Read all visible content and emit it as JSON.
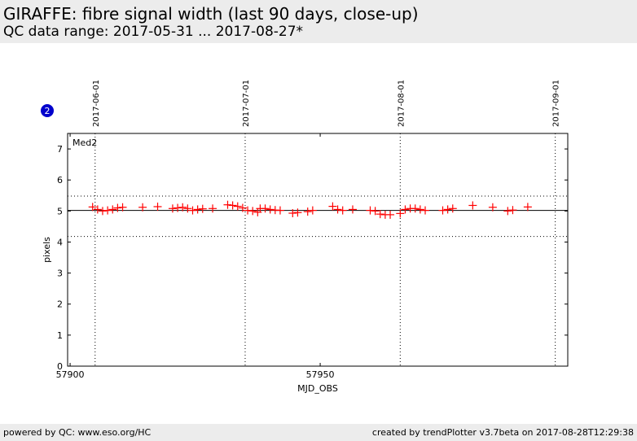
{
  "header": {
    "title": "GIRAFFE: fibre signal width (last 90 days, close-up)",
    "subtitle": "QC data range: 2017-05-31 ... 2017-08-27*"
  },
  "footer": {
    "left": "powered by QC: www.eso.org/HC",
    "right": "created by trendPlotter v3.7beta on 2017-08-28T12:29:38"
  },
  "badge": "2",
  "colors": {
    "marker": "#ff0000",
    "badge": "#0000cc",
    "header_bg": "#ececec"
  },
  "chart_data": {
    "type": "scatter",
    "title": "",
    "xlabel": "MJD_OBS",
    "ylabel": "pixels",
    "xlim": [
      57899.5,
      57999.5
    ],
    "ylim": [
      0,
      7.5
    ],
    "xticks": [
      57900,
      57950
    ],
    "yticks": [
      0,
      1,
      2,
      3,
      4,
      5,
      6,
      7
    ],
    "panel_label": "Med2",
    "date_markers": [
      {
        "label": "2017-06-01",
        "mjd": 57905
      },
      {
        "label": "2017-07-01",
        "mjd": 57935
      },
      {
        "label": "2017-08-01",
        "mjd": 57966
      },
      {
        "label": "2017-09-01",
        "mjd": 57997
      }
    ],
    "reference_lines": [
      {
        "y": 5.02,
        "style": "solid"
      },
      {
        "y": 5.48,
        "style": "dotted"
      },
      {
        "y": 4.18,
        "style": "dotted"
      }
    ],
    "grid": false,
    "marker": "+",
    "points": [
      {
        "x": 57904.5,
        "y": 5.13
      },
      {
        "x": 57905.5,
        "y": 5.05
      },
      {
        "x": 57906.5,
        "y": 5.0
      },
      {
        "x": 57907.5,
        "y": 5.02
      },
      {
        "x": 57908.5,
        "y": 5.05
      },
      {
        "x": 57909.5,
        "y": 5.1
      },
      {
        "x": 57910.5,
        "y": 5.12
      },
      {
        "x": 57914.5,
        "y": 5.12
      },
      {
        "x": 57917.5,
        "y": 5.14
      },
      {
        "x": 57920.5,
        "y": 5.08
      },
      {
        "x": 57921.5,
        "y": 5.1
      },
      {
        "x": 57922.5,
        "y": 5.12
      },
      {
        "x": 57923.5,
        "y": 5.08
      },
      {
        "x": 57924.5,
        "y": 5.02
      },
      {
        "x": 57925.5,
        "y": 5.05
      },
      {
        "x": 57926.5,
        "y": 5.07
      },
      {
        "x": 57928.5,
        "y": 5.08
      },
      {
        "x": 57931.5,
        "y": 5.2
      },
      {
        "x": 57932.5,
        "y": 5.18
      },
      {
        "x": 57933.5,
        "y": 5.15
      },
      {
        "x": 57934.5,
        "y": 5.1
      },
      {
        "x": 57935.5,
        "y": 5.02
      },
      {
        "x": 57936.5,
        "y": 5.0
      },
      {
        "x": 57937.5,
        "y": 4.96
      },
      {
        "x": 57938.0,
        "y": 5.08
      },
      {
        "x": 57939.0,
        "y": 5.08
      },
      {
        "x": 57940.0,
        "y": 5.05
      },
      {
        "x": 57941.0,
        "y": 5.03
      },
      {
        "x": 57942.0,
        "y": 5.02
      },
      {
        "x": 57944.5,
        "y": 4.93
      },
      {
        "x": 57945.5,
        "y": 4.95
      },
      {
        "x": 57947.5,
        "y": 4.98
      },
      {
        "x": 57948.5,
        "y": 5.02
      },
      {
        "x": 57952.5,
        "y": 5.15
      },
      {
        "x": 57953.5,
        "y": 5.05
      },
      {
        "x": 57954.5,
        "y": 5.02
      },
      {
        "x": 57956.5,
        "y": 5.05
      },
      {
        "x": 57960.0,
        "y": 5.02
      },
      {
        "x": 57961.0,
        "y": 5.0
      },
      {
        "x": 57962.0,
        "y": 4.9
      },
      {
        "x": 57963.0,
        "y": 4.88
      },
      {
        "x": 57964.0,
        "y": 4.88
      },
      {
        "x": 57966.0,
        "y": 4.92
      },
      {
        "x": 57967.0,
        "y": 5.05
      },
      {
        "x": 57968.0,
        "y": 5.08
      },
      {
        "x": 57969.0,
        "y": 5.08
      },
      {
        "x": 57970.0,
        "y": 5.05
      },
      {
        "x": 57971.0,
        "y": 5.02
      },
      {
        "x": 57974.5,
        "y": 5.02
      },
      {
        "x": 57975.5,
        "y": 5.05
      },
      {
        "x": 57976.5,
        "y": 5.08
      },
      {
        "x": 57980.5,
        "y": 5.18
      },
      {
        "x": 57984.5,
        "y": 5.12
      },
      {
        "x": 57987.5,
        "y": 5.0
      },
      {
        "x": 57988.5,
        "y": 5.03
      },
      {
        "x": 57991.5,
        "y": 5.13
      }
    ]
  }
}
